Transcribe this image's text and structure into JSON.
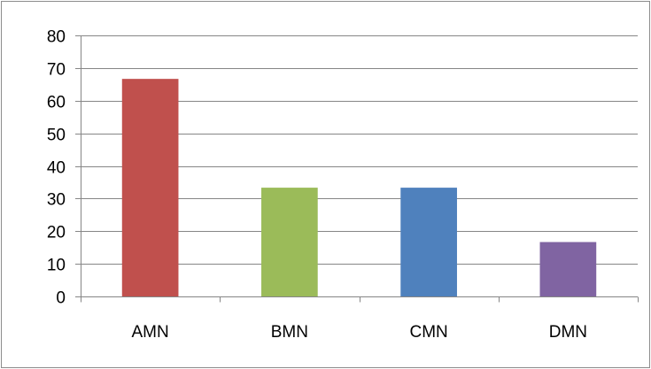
{
  "chart_data": {
    "type": "bar",
    "title": "",
    "xlabel": "",
    "ylabel": "",
    "categories": [
      "AMN",
      "BMN",
      "CMN",
      "DMN"
    ],
    "values": [
      66.67,
      33.33,
      33.33,
      16.67
    ],
    "colors": [
      "#c0504d",
      "#9bbb59",
      "#4f81bd",
      "#8064a2"
    ],
    "ylim": [
      0,
      80
    ],
    "yticks": [
      0,
      10,
      20,
      30,
      40,
      50,
      60,
      70,
      80
    ],
    "ytick_labels": [
      "0",
      "10",
      "20",
      "30",
      "40",
      "50",
      "60",
      "70",
      "80"
    ],
    "grid": true,
    "legend": "none",
    "style": {
      "gridline_color": "#868686",
      "axis_color": "#868686",
      "frame_border_color": "#8c8c8c",
      "background": "#ffffff",
      "text_color": "#000000"
    }
  }
}
